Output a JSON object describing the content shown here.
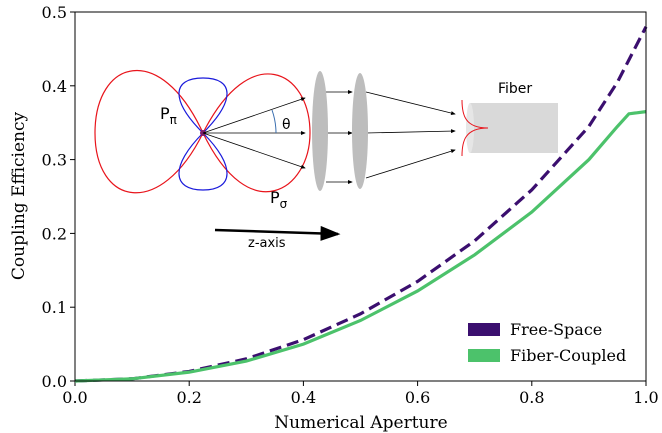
{
  "chart_data": {
    "type": "line",
    "xlabel": "Numerical Aperture",
    "ylabel": "Coupling Efficiency",
    "x": [
      0,
      0.1,
      0.2,
      0.3,
      0.4,
      0.5,
      0.6,
      0.7,
      0.8,
      0.9,
      0.95,
      0.97,
      1.0
    ],
    "series": [
      {
        "name": "Free-Space",
        "color": "#3b0f6f",
        "linestyle": "dashed",
        "values": [
          0,
          0.003,
          0.013,
          0.03,
          0.056,
          0.091,
          0.135,
          0.19,
          0.259,
          0.345,
          0.405,
          0.435,
          0.48
        ]
      },
      {
        "name": "Fiber-Coupled",
        "color": "#4cc26b",
        "linestyle": "solid",
        "values": [
          0,
          0.003,
          0.012,
          0.027,
          0.05,
          0.082,
          0.122,
          0.171,
          0.229,
          0.3,
          0.345,
          0.362,
          0.365
        ]
      }
    ],
    "xlim": [
      0,
      1.0
    ],
    "ylim": [
      0,
      0.5
    ],
    "xticks": [
      {
        "value": 0,
        "label": "0.0"
      },
      0.2,
      0.4,
      0.6,
      0.8,
      {
        "value": 1.0,
        "label": "1.0"
      }
    ],
    "yticks": [
      {
        "value": 0,
        "label": "0.0"
      },
      0.1,
      0.2,
      0.3,
      0.4,
      0.5
    ],
    "legend": "lower right",
    "annotations": [
      {
        "label": "P",
        "subscript": "π"
      },
      {
        "label": "θ"
      },
      {
        "label": "P",
        "subscript": "σ"
      },
      {
        "label": "z-axis"
      },
      {
        "label": "Fiber"
      }
    ]
  }
}
